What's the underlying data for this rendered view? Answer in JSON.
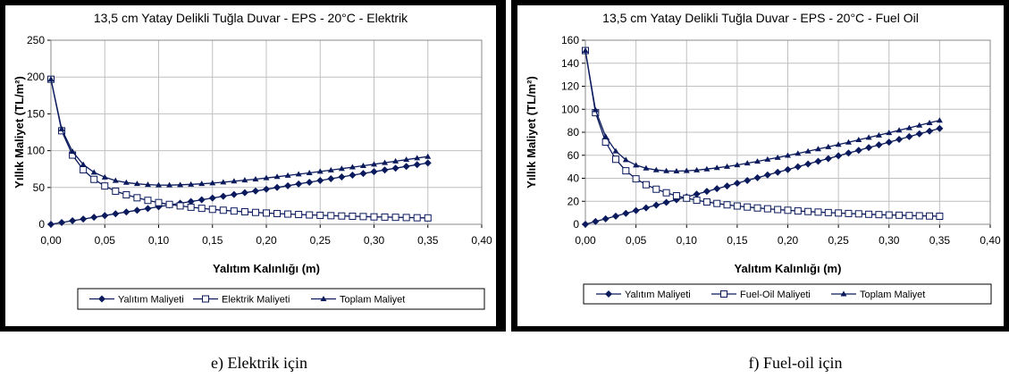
{
  "chart_data": [
    {
      "type": "line",
      "title": "13,5 cm Yatay Delikli Tuğla Duvar - EPS - 20°C - Elektrik",
      "xlabel": "Yalıtım Kalınlığı (m)",
      "ylabel": "Yıllık Maliyet (TL/m²)",
      "xlim": [
        0,
        0.4
      ],
      "ylim": [
        0,
        250
      ],
      "xticks": [
        "0,00",
        "0,05",
        "0,10",
        "0,15",
        "0,20",
        "0,25",
        "0,30",
        "0,35",
        "0,40"
      ],
      "yticks": [
        "0",
        "50",
        "100",
        "150",
        "200",
        "250"
      ],
      "grid": true,
      "legend_position": "bottom",
      "x": [
        0.0,
        0.01,
        0.02,
        0.03,
        0.04,
        0.05,
        0.06,
        0.07,
        0.08,
        0.09,
        0.1,
        0.11,
        0.12,
        0.13,
        0.14,
        0.15,
        0.16,
        0.17,
        0.18,
        0.19,
        0.2,
        0.21,
        0.22,
        0.23,
        0.24,
        0.25,
        0.26,
        0.27,
        0.28,
        0.29,
        0.3,
        0.31,
        0.32,
        0.33,
        0.34,
        0.35
      ],
      "series": [
        {
          "name": "Yalıtım Maliyeti",
          "marker": "diamond",
          "values": [
            0.0,
            2.4,
            4.8,
            7.1,
            9.5,
            11.9,
            14.3,
            16.7,
            19.0,
            21.4,
            23.8,
            26.2,
            28.6,
            31.0,
            33.3,
            35.7,
            38.1,
            40.5,
            42.9,
            45.2,
            47.6,
            50.0,
            52.4,
            54.8,
            57.1,
            59.5,
            61.9,
            64.3,
            66.7,
            69.0,
            71.4,
            73.8,
            76.2,
            78.6,
            81.0,
            83.3
          ]
        },
        {
          "name": "Elektrik Maliyeti",
          "marker": "square-open",
          "values": [
            197.0,
            127.0,
            94.0,
            74.0,
            61.0,
            52.0,
            45.0,
            40.0,
            36.0,
            32.5,
            29.5,
            27.0,
            25.0,
            23.2,
            21.7,
            20.3,
            19.1,
            18.0,
            17.0,
            16.1,
            15.3,
            14.6,
            13.9,
            13.3,
            12.7,
            12.2,
            11.7,
            11.3,
            10.9,
            10.5,
            10.1,
            9.8,
            9.5,
            9.2,
            8.9,
            8.7
          ]
        },
        {
          "name": "Toplam Maliyet",
          "marker": "triangle",
          "values": [
            197.0,
            129.4,
            98.8,
            81.1,
            70.5,
            63.9,
            59.3,
            56.7,
            55.0,
            53.9,
            53.3,
            53.2,
            53.6,
            54.2,
            55.0,
            56.0,
            57.2,
            58.5,
            59.9,
            61.3,
            62.9,
            64.6,
            66.3,
            68.1,
            69.8,
            71.7,
            73.6,
            75.6,
            77.6,
            79.5,
            81.5,
            83.6,
            85.7,
            87.8,
            89.9,
            92.0
          ]
        }
      ]
    },
    {
      "type": "line",
      "title": "13,5 cm Yatay Delikli Tuğla Duvar -  EPS - 20°C - Fuel Oil",
      "xlabel": "Yalıtım Kalınlığı (m)",
      "ylabel": "Yıllık Maliyet (TL/m²)",
      "xlim": [
        0,
        0.4
      ],
      "ylim": [
        0,
        160
      ],
      "xticks": [
        "0,00",
        "0,05",
        "0,10",
        "0,15",
        "0,20",
        "0,25",
        "0,30",
        "0,35",
        "0,40"
      ],
      "yticks": [
        "0",
        "20",
        "40",
        "60",
        "80",
        "100",
        "120",
        "140",
        "160"
      ],
      "grid": true,
      "legend_position": "bottom",
      "x": [
        0.0,
        0.01,
        0.02,
        0.03,
        0.04,
        0.05,
        0.06,
        0.07,
        0.08,
        0.09,
        0.1,
        0.11,
        0.12,
        0.13,
        0.14,
        0.15,
        0.16,
        0.17,
        0.18,
        0.19,
        0.2,
        0.21,
        0.22,
        0.23,
        0.24,
        0.25,
        0.26,
        0.27,
        0.28,
        0.29,
        0.3,
        0.31,
        0.32,
        0.33,
        0.34,
        0.35
      ],
      "series": [
        {
          "name": "Yalıtım Maliyeti",
          "marker": "diamond",
          "values": [
            0.0,
            2.4,
            4.8,
            7.1,
            9.5,
            11.9,
            14.3,
            16.7,
            19.0,
            21.4,
            23.8,
            26.2,
            28.6,
            31.0,
            33.3,
            35.7,
            38.1,
            40.5,
            42.9,
            45.2,
            47.6,
            50.0,
            52.4,
            54.8,
            57.1,
            59.5,
            61.9,
            64.3,
            66.7,
            69.0,
            71.4,
            73.8,
            76.2,
            78.6,
            81.0,
            83.3
          ]
        },
        {
          "name": "Fuel-Oil Maliyeti",
          "marker": "square-open",
          "values": [
            151.0,
            97.0,
            71.5,
            56.5,
            46.5,
            39.5,
            34.4,
            30.5,
            27.4,
            24.8,
            22.7,
            20.9,
            19.4,
            18.1,
            16.9,
            15.9,
            15.0,
            14.2,
            13.5,
            12.8,
            12.2,
            11.6,
            11.1,
            10.6,
            10.2,
            9.8,
            9.4,
            9.1,
            8.7,
            8.4,
            8.1,
            7.9,
            7.6,
            7.4,
            7.2,
            7.0
          ]
        },
        {
          "name": "Toplam Maliyet",
          "marker": "triangle",
          "values": [
            151.0,
            99.4,
            76.3,
            63.6,
            56.0,
            51.4,
            48.7,
            47.2,
            46.4,
            46.2,
            46.5,
            47.1,
            48.0,
            49.1,
            50.2,
            51.6,
            53.1,
            54.7,
            56.4,
            58.0,
            59.8,
            61.6,
            63.5,
            65.4,
            67.3,
            69.3,
            71.3,
            73.4,
            75.4,
            77.4,
            79.5,
            81.7,
            83.8,
            86.0,
            88.2,
            90.3
          ]
        }
      ]
    }
  ],
  "captions": {
    "left": "e) Elektrik için",
    "right": "f) Fuel-oil için"
  },
  "colors": {
    "series": "#0a1a5c",
    "grid": "#c0c0c0",
    "frame": "#000000"
  }
}
